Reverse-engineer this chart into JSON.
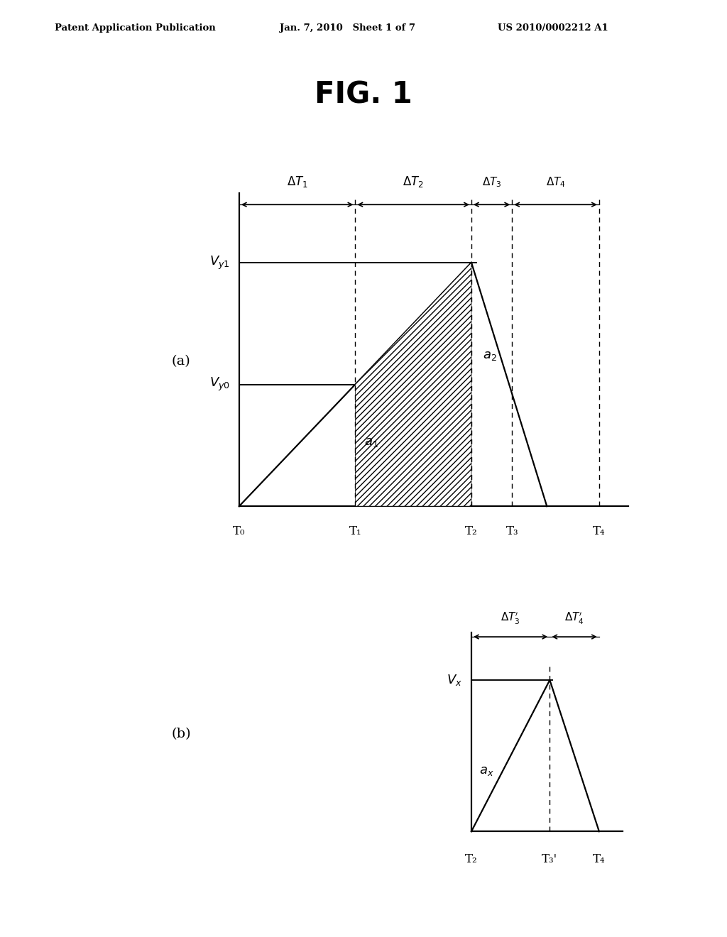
{
  "fig_title": "FIG. 1",
  "header_left": "Patent Application Publication",
  "header_center": "Jan. 7, 2010   Sheet 1 of 7",
  "header_right": "US 2010/0002212 A1",
  "background_color": "#ffffff",
  "plot_a_label": "(a)",
  "plot_b_label": "(b)",
  "T0": 0.0,
  "T1": 1.0,
  "T2": 2.0,
  "T3": 2.35,
  "T4": 3.1,
  "T3p": 2.675,
  "Vy0": 0.42,
  "Vy1": 0.84,
  "Vx": 0.7,
  "T_labels_a": [
    "T₀",
    "T₁",
    "T₂",
    "T₃",
    "T₄"
  ],
  "T_labels_b": [
    "T₂",
    "T₃'",
    "T₄"
  ]
}
